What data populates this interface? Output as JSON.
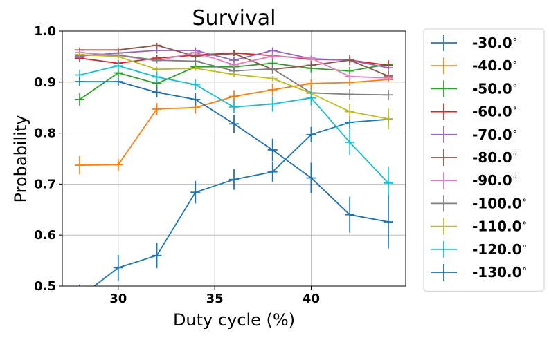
{
  "chart_data": {
    "type": "line",
    "title": "Survival",
    "xlabel": "Duty cycle (%)",
    "ylabel": "Probability",
    "xlim": [
      27.1,
      44.9
    ],
    "ylim": [
      0.5,
      1.0
    ],
    "xticks": [
      30,
      35,
      40
    ],
    "yticks": [
      0.5,
      0.6,
      0.7,
      0.8,
      0.9,
      1.0
    ],
    "xtick_labels": [
      "30",
      "35",
      "40"
    ],
    "ytick_labels": [
      "0.5",
      "0.6",
      "0.7",
      "0.8",
      "0.9",
      "1.0"
    ],
    "grid": true,
    "legend_position": "outside-right",
    "x": [
      28,
      30,
      32,
      34,
      36,
      38,
      40,
      42,
      44
    ],
    "series": [
      {
        "name": "-30.0$^\\circ$",
        "label_text": "-30.0",
        "color": "#1f77b4",
        "values": [
          0.478,
          0.536,
          0.56,
          0.684,
          0.709,
          0.724,
          0.797,
          0.821,
          0.827
        ],
        "errors": [
          0.025,
          0.025,
          0.025,
          0.022,
          0.02,
          0.02,
          0.015,
          0.012,
          0.01
        ]
      },
      {
        "name": "-40.0$^\\circ$",
        "label_text": "-40.0",
        "color": "#ff7f0e",
        "values": [
          0.737,
          0.738,
          0.847,
          0.85,
          0.872,
          0.885,
          0.897,
          0.899,
          0.905
        ],
        "errors": [
          0.018,
          0.012,
          0.012,
          0.012,
          0.012,
          0.012,
          0.008,
          0.006,
          0.005
        ]
      },
      {
        "name": "-50.0$^\\circ$",
        "label_text": "-50.0",
        "color": "#2ca02c",
        "values": [
          0.866,
          0.918,
          0.897,
          0.93,
          0.93,
          0.937,
          0.927,
          0.922,
          0.935
        ],
        "errors": [
          0.012,
          0.008,
          0.008,
          0.008,
          0.008,
          0.008,
          0.008,
          0.008,
          0.008
        ]
      },
      {
        "name": "-60.0$^\\circ$",
        "label_text": "-60.0",
        "color": "#d62728",
        "values": [
          0.947,
          0.937,
          0.947,
          0.953,
          0.957,
          0.952,
          0.945,
          0.943,
          0.933
        ],
        "errors": [
          0.008,
          0.006,
          0.006,
          0.006,
          0.006,
          0.006,
          0.006,
          0.006,
          0.01
        ]
      },
      {
        "name": "-70.0$^\\circ$",
        "label_text": "-70.0",
        "color": "#9467bd",
        "values": [
          0.951,
          0.957,
          0.962,
          0.962,
          0.943,
          0.962,
          0.946,
          0.943,
          0.928
        ],
        "errors": [
          0.006,
          0.006,
          0.006,
          0.006,
          0.006,
          0.006,
          0.006,
          0.006,
          0.006
        ]
      },
      {
        "name": "-80.0$^\\circ$",
        "label_text": "-80.0",
        "color": "#8c564b",
        "values": [
          0.963,
          0.963,
          0.972,
          0.951,
          0.956,
          0.925,
          0.933,
          0.943,
          0.912
        ],
        "errors": [
          0.005,
          0.005,
          0.005,
          0.005,
          0.005,
          0.005,
          0.008,
          0.01,
          0.01
        ]
      },
      {
        "name": "-90.0$^\\circ$",
        "label_text": "-90.0",
        "color": "#e377c2",
        "values": [
          0.958,
          0.952,
          0.942,
          0.958,
          0.934,
          0.951,
          0.947,
          0.911,
          0.908
        ],
        "errors": [
          0.005,
          0.005,
          0.005,
          0.005,
          0.005,
          0.005,
          0.005,
          0.005,
          0.005
        ]
      },
      {
        "name": "-100.0$^\\circ$",
        "label_text": "-100.0",
        "color": "#7f7f7f",
        "values": [
          0.953,
          0.953,
          0.943,
          0.941,
          0.922,
          0.926,
          0.879,
          0.876,
          0.875
        ],
        "errors": [
          0.005,
          0.005,
          0.005,
          0.005,
          0.005,
          0.01,
          0.01,
          0.01,
          0.01
        ]
      },
      {
        "name": "-110.0$^\\circ$",
        "label_text": "-110.0",
        "color": "#bcbd22",
        "values": [
          0.954,
          0.95,
          0.925,
          0.927,
          0.915,
          0.907,
          0.878,
          0.842,
          0.828
        ],
        "errors": [
          0.005,
          0.005,
          0.005,
          0.005,
          0.005,
          0.005,
          0.008,
          0.015,
          0.02
        ]
      },
      {
        "name": "-120.0$^\\circ$",
        "label_text": "-120.0",
        "color": "#17becf",
        "values": [
          0.914,
          0.932,
          0.91,
          0.895,
          0.851,
          0.857,
          0.869,
          0.782,
          0.702
        ],
        "errors": [
          0.01,
          0.01,
          0.01,
          0.01,
          0.012,
          0.015,
          0.015,
          0.025,
          0.032
        ]
      },
      {
        "name": "-130.0$^\\circ$",
        "label_text": "-130.0",
        "color": "#1f6fae",
        "values": [
          0.901,
          0.901,
          0.88,
          0.866,
          0.818,
          0.767,
          0.712,
          0.64,
          0.626
        ],
        "errors": [
          0.008,
          0.008,
          0.01,
          0.012,
          0.018,
          0.022,
          0.03,
          0.035,
          0.052
        ]
      }
    ]
  }
}
